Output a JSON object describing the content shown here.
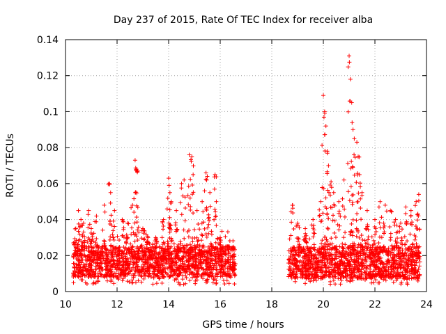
{
  "chart_data": {
    "type": "scatter",
    "title": "Day 237 of 2015, Rate Of TEC Index for receiver alba",
    "xlabel": "GPS time / hours",
    "ylabel": "ROTI / TECUs",
    "xlim": [
      10,
      24
    ],
    "ylim": [
      0,
      0.14
    ],
    "xticks": [
      10,
      12,
      14,
      16,
      18,
      20,
      22,
      24
    ],
    "yticks": [
      0,
      0.02,
      0.04,
      0.06,
      0.08,
      0.1,
      0.12,
      0.14
    ],
    "xtick_labels": [
      "10",
      "12",
      "14",
      "16",
      "18",
      "20",
      "22",
      "24"
    ],
    "ytick_labels": [
      "0",
      "0.02",
      "0.04",
      "0.06",
      "0.08",
      "0.1",
      "0.12",
      "0.14"
    ],
    "grid": true,
    "marker": "+",
    "color": "#ff0000",
    "series": [
      {
        "name": "ROTI",
        "segments": [
          {
            "x_start": 10.3,
            "x_end": 16.6,
            "baseline_min": 0.008,
            "baseline_max": 0.025
          },
          {
            "x_start": 18.65,
            "x_end": 23.75,
            "baseline_min": 0.007,
            "baseline_max": 0.025
          }
        ],
        "points": [
          [
            10.4,
            0.035
          ],
          [
            10.5,
            0.045
          ],
          [
            10.6,
            0.04
          ],
          [
            10.7,
            0.038
          ],
          [
            10.9,
            0.045
          ],
          [
            11.0,
            0.035
          ],
          [
            11.2,
            0.042
          ],
          [
            11.5,
            0.048
          ],
          [
            11.7,
            0.06
          ],
          [
            11.75,
            0.055
          ],
          [
            11.9,
            0.045
          ],
          [
            12.2,
            0.04
          ],
          [
            12.4,
            0.038
          ],
          [
            12.6,
            0.048
          ],
          [
            12.7,
            0.073
          ],
          [
            12.75,
            0.068
          ],
          [
            12.8,
            0.067
          ],
          [
            13.0,
            0.035
          ],
          [
            13.2,
            0.03
          ],
          [
            13.5,
            0.03
          ],
          [
            13.8,
            0.04
          ],
          [
            14.0,
            0.063
          ],
          [
            14.05,
            0.055
          ],
          [
            14.1,
            0.05
          ],
          [
            14.3,
            0.045
          ],
          [
            14.5,
            0.06
          ],
          [
            14.6,
            0.062
          ],
          [
            14.8,
            0.076
          ],
          [
            14.9,
            0.075
          ],
          [
            14.95,
            0.065
          ],
          [
            15.1,
            0.045
          ],
          [
            15.3,
            0.05
          ],
          [
            15.45,
            0.066
          ],
          [
            15.5,
            0.064
          ],
          [
            15.6,
            0.055
          ],
          [
            15.8,
            0.065
          ],
          [
            15.85,
            0.05
          ],
          [
            16.0,
            0.03
          ],
          [
            16.3,
            0.025
          ],
          [
            16.5,
            0.024
          ],
          [
            18.8,
            0.048
          ],
          [
            19.0,
            0.038
          ],
          [
            19.3,
            0.035
          ],
          [
            19.6,
            0.04
          ],
          [
            19.9,
            0.05
          ],
          [
            20.0,
            0.109
          ],
          [
            20.05,
            0.1
          ],
          [
            20.1,
            0.092
          ],
          [
            20.15,
            0.078
          ],
          [
            20.2,
            0.07
          ],
          [
            20.3,
            0.061
          ],
          [
            20.4,
            0.055
          ],
          [
            20.6,
            0.05
          ],
          [
            20.8,
            0.062
          ],
          [
            21.0,
            0.131
          ],
          [
            21.05,
            0.118
          ],
          [
            21.1,
            0.105
          ],
          [
            21.15,
            0.09
          ],
          [
            21.2,
            0.085
          ],
          [
            21.3,
            0.083
          ],
          [
            21.35,
            0.075
          ],
          [
            21.4,
            0.065
          ],
          [
            21.5,
            0.055
          ],
          [
            21.7,
            0.045
          ],
          [
            22.0,
            0.04
          ],
          [
            22.2,
            0.05
          ],
          [
            22.4,
            0.048
          ],
          [
            22.6,
            0.045
          ],
          [
            22.8,
            0.04
          ],
          [
            23.0,
            0.038
          ],
          [
            23.2,
            0.047
          ],
          [
            23.4,
            0.045
          ],
          [
            23.6,
            0.05
          ],
          [
            23.7,
            0.054
          ]
        ]
      }
    ]
  }
}
